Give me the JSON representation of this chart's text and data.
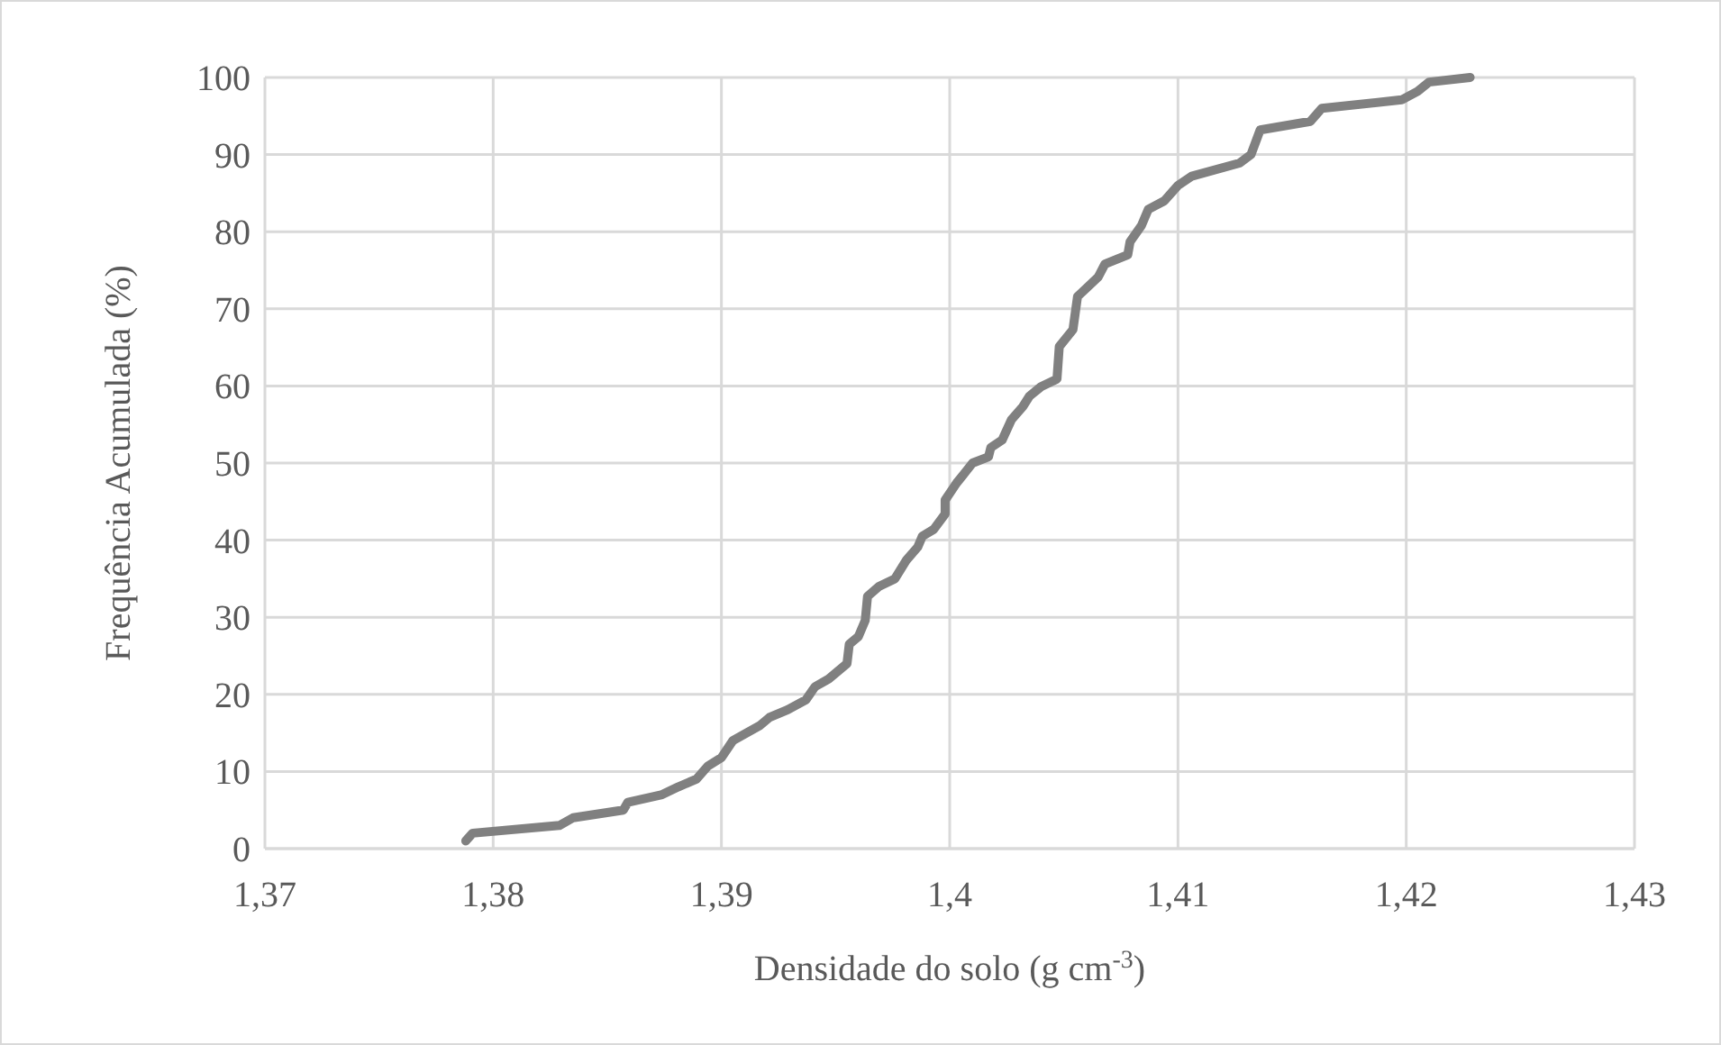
{
  "chart_data": {
    "type": "line",
    "xlabel": "Densidade do solo (g cm$^{-3}$)",
    "ylabel": "Frequência Acumulada (%)",
    "x": [
      1.3788,
      1.3791,
      1.3829,
      1.3835,
      1.3857,
      1.3859,
      1.3874,
      1.3881,
      1.3889,
      1.3894,
      1.39,
      1.3905,
      1.3917,
      1.3921,
      1.3929,
      1.3937,
      1.3941,
      1.3947,
      1.3955,
      1.3956,
      1.396,
      1.3963,
      1.3964,
      1.3969,
      1.3976,
      1.3981,
      1.3986,
      1.3988,
      1.3993,
      1.3998,
      1.3998,
      1.4003,
      1.4006,
      1.401,
      1.4017,
      1.4018,
      1.4023,
      1.4027,
      1.4032,
      1.4035,
      1.404,
      1.4047,
      1.4048,
      1.4054,
      1.4056,
      1.406,
      1.4065,
      1.4068,
      1.4078,
      1.4079,
      1.4084,
      1.4087,
      1.4094,
      1.41,
      1.4106,
      1.4127,
      1.4132,
      1.4136,
      1.4158,
      1.4163,
      1.4198,
      1.4205,
      1.421,
      1.4228
    ],
    "series": [
      {
        "color": "#808080",
        "values": [
          1,
          2,
          3,
          4,
          5,
          6,
          7,
          8,
          9,
          10.7,
          11.8,
          14,
          16,
          17,
          18,
          19.3,
          21,
          22,
          24,
          26.5,
          27.5,
          29.6,
          32.7,
          34,
          35,
          37.4,
          39.1,
          40.5,
          41.4,
          43.4,
          45.2,
          47.4,
          48.5,
          50,
          50.8,
          52,
          53,
          55.6,
          57.3,
          58.7,
          59.9,
          60.9,
          65.1,
          67.3,
          71.6,
          72.7,
          74.1,
          75.8,
          77,
          78.7,
          80.8,
          82.9,
          84,
          86,
          87.2,
          88.9,
          90,
          93.2,
          94.3,
          96,
          97.1,
          98.2,
          99.4,
          100
        ]
      }
    ],
    "xlim": [
      1.37,
      1.43
    ],
    "xticks": [
      {
        "value": 1.37,
        "label": "1,37"
      },
      {
        "value": 1.38,
        "label": "1,38"
      },
      {
        "value": 1.39,
        "label": "1,39"
      },
      {
        "value": 1.4,
        "label": "1,4"
      },
      {
        "value": 1.41,
        "label": "1,41"
      },
      {
        "value": 1.42,
        "label": "1,42"
      },
      {
        "value": 1.43,
        "label": "1,43"
      }
    ],
    "ylim": [
      0,
      100
    ],
    "yticks": [
      0,
      10,
      20,
      30,
      40,
      50,
      60,
      70,
      80,
      90,
      100
    ],
    "grid": true,
    "marker": "none",
    "line_style": "solid"
  }
}
